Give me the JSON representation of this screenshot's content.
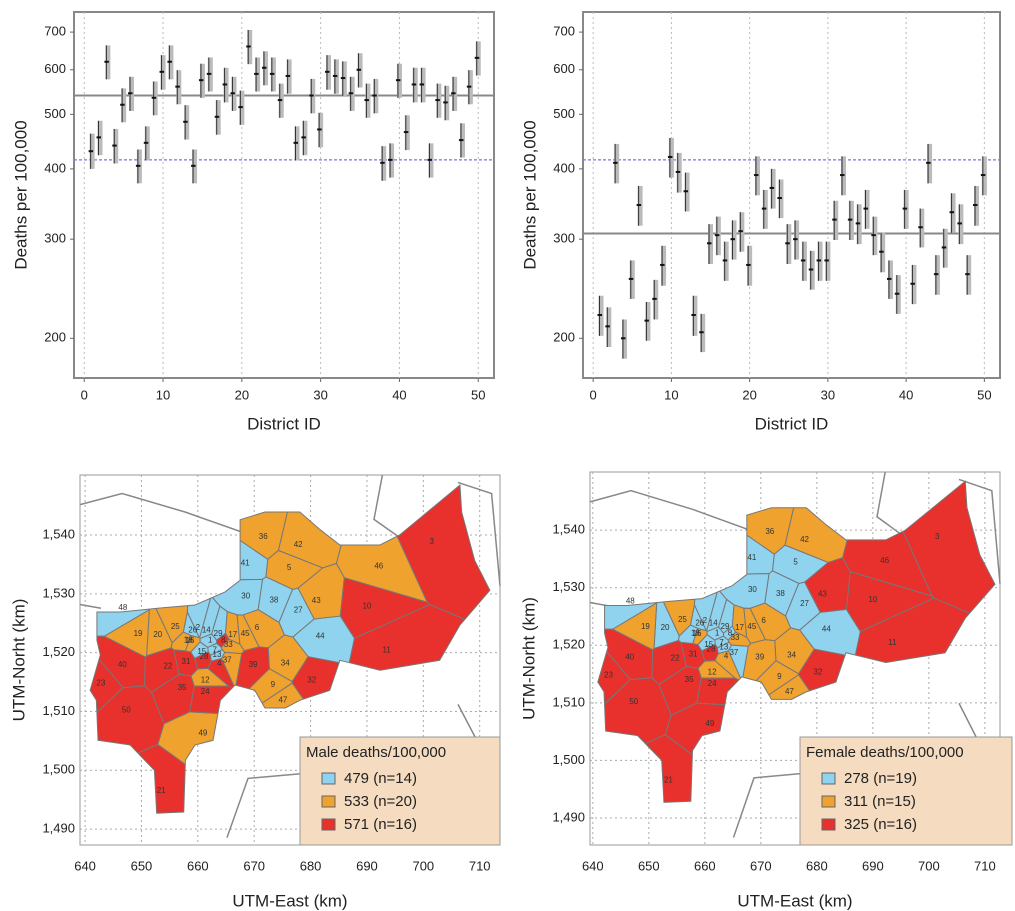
{
  "chart_data": [
    {
      "type": "errorbar",
      "xlabel": "District ID",
      "ylabel": "Deaths per 100,000",
      "x": [
        1,
        2,
        3,
        4,
        5,
        6,
        7,
        8,
        9,
        10,
        11,
        12,
        13,
        14,
        15,
        16,
        17,
        18,
        19,
        20,
        21,
        22,
        23,
        24,
        25,
        26,
        27,
        28,
        29,
        30,
        31,
        32,
        33,
        34,
        35,
        36,
        37,
        38,
        39,
        40,
        41,
        42,
        43,
        44,
        45,
        46,
        47,
        48,
        49,
        50
      ],
      "values": [
        430,
        455,
        620,
        440,
        520,
        545,
        405,
        445,
        535,
        595,
        620,
        560,
        485,
        405,
        575,
        590,
        495,
        565,
        545,
        515,
        660,
        590,
        605,
        590,
        530,
        585,
        445,
        455,
        540,
        470,
        595,
        585,
        580,
        545,
        600,
        530,
        540,
        410,
        415,
        575,
        465,
        565,
        565,
        415,
        530,
        525,
        545,
        450,
        560,
        630
      ],
      "lower": [
        400,
        423,
        577,
        409,
        484,
        507,
        377,
        414,
        498,
        553,
        577,
        521,
        451,
        377,
        535,
        549,
        460,
        525,
        507,
        479,
        614,
        549,
        563,
        549,
        493,
        544,
        414,
        423,
        502,
        437,
        553,
        544,
        539,
        507,
        558,
        493,
        502,
        381,
        386,
        535,
        432,
        525,
        525,
        386,
        493,
        488,
        507,
        419,
        521,
        586
      ],
      "upper": [
        462,
        487,
        663,
        471,
        556,
        583,
        433,
        476,
        572,
        637,
        663,
        599,
        519,
        433,
        615,
        631,
        530,
        605,
        583,
        551,
        706,
        631,
        647,
        631,
        567,
        626,
        476,
        487,
        578,
        503,
        637,
        626,
        621,
        583,
        642,
        567,
        578,
        439,
        444,
        615,
        498,
        605,
        605,
        444,
        567,
        562,
        583,
        482,
        599,
        674
      ],
      "color": "#bbbbbb",
      "xlim": [
        -1.3,
        52
      ],
      "ylim": [
        170,
        760
      ],
      "log_y": true,
      "xticks": [
        0,
        10,
        20,
        30,
        40,
        50
      ],
      "yticks": [
        200,
        300,
        400,
        500,
        600,
        700
      ],
      "grid": "x",
      "reference_lines": [
        {
          "value": 540,
          "style": "solid",
          "color": "#888888"
        },
        {
          "value": 415,
          "style": "dashed",
          "color": "#7777dd"
        }
      ]
    },
    {
      "type": "errorbar",
      "xlabel": "District ID",
      "ylabel": "Deaths per 100,000",
      "x": [
        1,
        2,
        3,
        4,
        5,
        6,
        7,
        8,
        9,
        10,
        11,
        12,
        13,
        14,
        15,
        16,
        17,
        18,
        19,
        20,
        21,
        22,
        23,
        24,
        25,
        26,
        27,
        28,
        29,
        30,
        31,
        32,
        33,
        34,
        35,
        36,
        37,
        38,
        39,
        40,
        41,
        42,
        43,
        44,
        45,
        46,
        47,
        48,
        49,
        50
      ],
      "values": [
        220,
        210,
        410,
        200,
        255,
        345,
        215,
        235,
        270,
        420,
        395,
        365,
        220,
        205,
        295,
        305,
        275,
        300,
        310,
        270,
        390,
        340,
        370,
        355,
        295,
        300,
        275,
        265,
        275,
        275,
        325,
        390,
        325,
        320,
        340,
        305,
        285,
        255,
        240,
        340,
        250,
        315,
        410,
        260,
        290,
        335,
        320,
        260,
        345,
        390
      ],
      "lower": [
        202,
        193,
        377,
        184,
        235,
        317,
        198,
        216,
        248,
        386,
        363,
        336,
        202,
        189,
        271,
        281,
        253,
        276,
        285,
        248,
        359,
        313,
        340,
        327,
        271,
        276,
        253,
        244,
        253,
        253,
        299,
        359,
        299,
        294,
        313,
        281,
        262,
        235,
        221,
        313,
        230,
        290,
        377,
        239,
        267,
        308,
        294,
        239,
        317,
        359
      ],
      "upper": [
        238,
        227,
        443,
        216,
        275,
        373,
        232,
        254,
        292,
        454,
        427,
        394,
        238,
        221,
        319,
        329,
        297,
        324,
        335,
        292,
        421,
        367,
        400,
        383,
        319,
        324,
        297,
        286,
        297,
        297,
        351,
        421,
        351,
        346,
        367,
        329,
        308,
        275,
        259,
        367,
        270,
        340,
        443,
        281,
        313,
        362,
        346,
        281,
        373,
        421
      ],
      "color": "#bbbbbb",
      "xlim": [
        -1.3,
        52
      ],
      "ylim": [
        170,
        760
      ],
      "log_y": true,
      "xticks": [
        0,
        10,
        20,
        30,
        40,
        50
      ],
      "yticks": [
        200,
        300,
        400,
        500,
        600,
        700
      ],
      "grid": "x",
      "reference_lines": [
        {
          "value": 307,
          "style": "solid",
          "color": "#888888"
        },
        {
          "value": 415,
          "style": "dashed",
          "color": "#7777dd"
        }
      ]
    },
    {
      "type": "map",
      "xlabel": "UTM-East (km)",
      "ylabel": "UTM-Norht (km)",
      "xlim": [
        639.1,
        713.6
      ],
      "ylim": [
        1487.3,
        1550.2
      ],
      "xticks": [
        640,
        650,
        660,
        670,
        680,
        690,
        700,
        710
      ],
      "yticks": [
        {
          "value": 1490,
          "label": "1,490"
        },
        {
          "value": 1500,
          "label": "1,500"
        },
        {
          "value": 1510,
          "label": "1,510"
        },
        {
          "value": 1520,
          "label": "1,520"
        },
        {
          "value": 1530,
          "label": "1,530"
        },
        {
          "value": 1540,
          "label": "1,540"
        }
      ],
      "grid": true,
      "legend": {
        "title": "Male deaths/100,000",
        "position": "lower right"
      },
      "series": [
        {
          "name": "479 (n=14)",
          "color": "#8fd3ef",
          "districts": [
            "48",
            "41",
            "30",
            "38",
            "27",
            "44",
            "2",
            "14",
            "15",
            "1",
            "7",
            "29",
            "26",
            "13"
          ]
        },
        {
          "name": "533 (n=20)",
          "color": "#f0a22e",
          "districts": [
            "36",
            "42",
            "5",
            "46",
            "43",
            "19",
            "20",
            "25",
            "17",
            "45",
            "6",
            "34",
            "9",
            "47",
            "49",
            "12",
            "18",
            "16",
            "33",
            "37"
          ]
        },
        {
          "name": "571 (n=16)",
          "color": "#e8302c",
          "districts": [
            "3",
            "10",
            "11",
            "32",
            "40",
            "22",
            "31",
            "23",
            "35",
            "24",
            "50",
            "21",
            "39",
            "28",
            "4",
            "8"
          ]
        }
      ]
    },
    {
      "type": "map",
      "xlabel": "UTM-East (km)",
      "ylabel": "UTM-Norht (km)",
      "xlim": [
        639.5,
        712.7
      ],
      "ylim": [
        1485.3,
        1550.1
      ],
      "xticks": [
        640,
        650,
        660,
        670,
        680,
        690,
        700,
        710
      ],
      "yticks": [
        {
          "value": 1490,
          "label": "1,490"
        },
        {
          "value": 1500,
          "label": "1,500"
        },
        {
          "value": 1510,
          "label": "1,510"
        },
        {
          "value": 1520,
          "label": "1,520"
        },
        {
          "value": 1530,
          "label": "1,530"
        },
        {
          "value": 1540,
          "label": "1,540"
        }
      ],
      "grid": true,
      "legend": {
        "title": "Female deaths/100,000",
        "position": "lower right"
      },
      "series": [
        {
          "name": "278 (n=19)",
          "color": "#8fd3ef",
          "districts": [
            "48",
            "20",
            "41",
            "30",
            "38",
            "27",
            "44",
            "5",
            "2",
            "14",
            "1",
            "7",
            "15",
            "29",
            "13",
            "26",
            "8",
            "37",
            "18"
          ]
        },
        {
          "name": "311 (n=15)",
          "color": "#f0a22e",
          "districts": [
            "19",
            "36",
            "42",
            "17",
            "45",
            "34",
            "9",
            "47",
            "33",
            "16",
            "25",
            "39",
            "6",
            "4",
            "12"
          ]
        },
        {
          "name": "325 (n=16)",
          "color": "#e8302c",
          "districts": [
            "46",
            "3",
            "10",
            "11",
            "43",
            "32",
            "40",
            "22",
            "31",
            "23",
            "35",
            "24",
            "50",
            "21",
            "49",
            "28"
          ]
        }
      ]
    }
  ]
}
